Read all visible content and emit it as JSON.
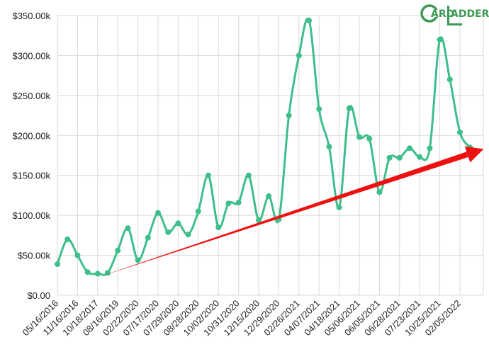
{
  "chart_data": {
    "type": "line",
    "x": [
      "05/16/2016",
      "",
      "11/16/2016",
      "",
      "10/18/2017",
      "",
      "08/16/2019",
      "",
      "02/22/2020",
      "",
      "07/17/2020",
      "",
      "07/29/2020",
      "",
      "08/28/2020",
      "",
      "10/02/2020",
      "",
      "10/31/2020",
      "",
      "12/15/2020",
      "",
      "12/29/2020",
      "",
      "02/26/2021",
      "",
      "04/07/2021",
      "",
      "04/18/2021",
      "",
      "05/06/2021",
      "",
      "06/05/2021",
      "",
      "06/28/2021",
      "",
      "07/23/2021",
      "",
      "10/25/2021",
      "",
      "02/05/2022",
      ""
    ],
    "x_tick_labels": [
      "05/16/2016",
      "11/16/2016",
      "10/18/2017",
      "08/16/2019",
      "02/22/2020",
      "07/17/2020",
      "07/29/2020",
      "08/28/2020",
      "10/02/2020",
      "10/31/2020",
      "12/15/2020",
      "12/29/2020",
      "02/26/2021",
      "04/07/2021",
      "04/18/2021",
      "05/06/2021",
      "06/05/2021",
      "06/28/2021",
      "07/23/2021",
      "10/25/2021",
      "02/05/2022"
    ],
    "series": [
      {
        "color": "#3dbe8b",
        "values": [
          39000,
          70000,
          50000,
          29000,
          27000,
          28000,
          56000,
          84000,
          44000,
          72000,
          103000,
          79000,
          90000,
          76000,
          105000,
          150000,
          85000,
          115000,
          116000,
          150000,
          94000,
          124000,
          95000,
          225000,
          300000,
          344000,
          233000,
          186000,
          110000,
          234000,
          198000,
          196000,
          129000,
          172000,
          172000,
          184000,
          173000,
          184000,
          320000,
          270000,
          204000,
          185000
        ]
      }
    ],
    "trend_arrow": {
      "color": "#ee1111",
      "from": {
        "index": 3.9,
        "value": 22000
      },
      "to": {
        "index": 42,
        "value": 183000
      }
    },
    "yticks": [
      "$0.00",
      "$50.00k",
      "$100.00k",
      "$150.00k",
      "$200.00k",
      "$250.00k",
      "$300.00k",
      "$350.00k"
    ],
    "ylim": [
      0,
      350000
    ],
    "grid": true,
    "title": "",
    "xlabel": "",
    "ylabel": ""
  },
  "logo": {
    "letter_c": "C",
    "text_ard": "ARD",
    "letter_l": "L",
    "text_adder": "ADDER",
    "color": "#3c9a55"
  }
}
